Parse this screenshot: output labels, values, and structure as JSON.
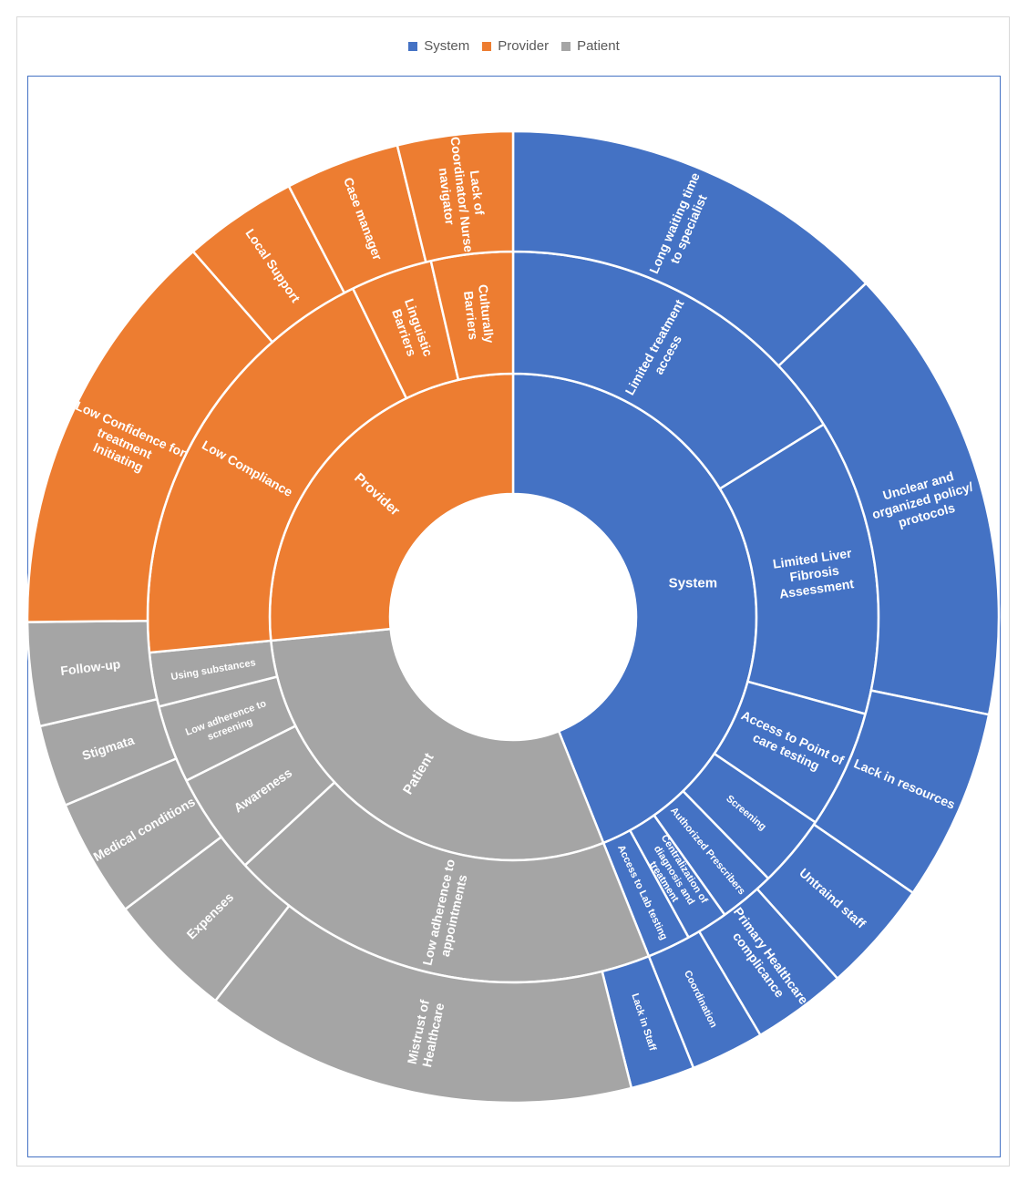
{
  "chart_data": {
    "type": "sunburst",
    "legend": [
      {
        "name": "System",
        "color": "#4472c4"
      },
      {
        "name": "Provider",
        "color": "#ed7d31"
      },
      {
        "name": "Patient",
        "color": "#a5a5a5"
      }
    ],
    "legend_position": "top",
    "nodes": [
      {
        "ring": 1,
        "label": "System",
        "group": "System",
        "start": 0,
        "end": 158.2
      },
      {
        "ring": 1,
        "label": "Patient",
        "group": "Patient",
        "start": 158.2,
        "end": 264.4
      },
      {
        "ring": 1,
        "label": "Provider",
        "group": "Provider",
        "start": 264.4,
        "end": 360
      },
      {
        "ring": 2,
        "label": "Limited treatment access",
        "group": "System",
        "start": 0,
        "end": 58.2
      },
      {
        "ring": 2,
        "label": "Limited Liver Fibrosis Assessment",
        "group": "System",
        "start": 58.2,
        "end": 105.4
      },
      {
        "ring": 2,
        "label": "Access to Point of care testing",
        "group": "System",
        "start": 105.4,
        "end": 124.2
      },
      {
        "ring": 2,
        "label": "Screening",
        "group": "System",
        "start": 124.2,
        "end": 135.7
      },
      {
        "ring": 2,
        "label": "Authorized Prescribers",
        "group": "System",
        "start": 135.7,
        "end": 144.6
      },
      {
        "ring": 2,
        "label": "Centralization of diagnosis and treatment",
        "group": "System",
        "start": 144.6,
        "end": 151.3
      },
      {
        "ring": 2,
        "label": "Access to Lab testing",
        "group": "System",
        "start": 151.3,
        "end": 158.2
      },
      {
        "ring": 2,
        "label": "Low adherence to appointments",
        "group": "Patient",
        "start": 158.2,
        "end": 227.2
      },
      {
        "ring": 2,
        "label": "Awareness",
        "group": "Patient",
        "start": 227.2,
        "end": 243.4
      },
      {
        "ring": 2,
        "label": "Low adherence to screening",
        "group": "Patient",
        "start": 243.4,
        "end": 255.8
      },
      {
        "ring": 2,
        "label": "Using substances",
        "group": "Patient",
        "start": 255.8,
        "end": 264.4
      },
      {
        "ring": 2,
        "label": "Low Compliance",
        "group": "Provider",
        "start": 264.4,
        "end": 334.0
      },
      {
        "ring": 2,
        "label": "Linguistic Barriers",
        "group": "Provider",
        "start": 334.0,
        "end": 347.0
      },
      {
        "ring": 2,
        "label": "Culturally Barriers",
        "group": "Provider",
        "start": 347.0,
        "end": 360
      },
      {
        "ring": 3,
        "label": "Long waiting time to specialist",
        "group": "System",
        "start": 0,
        "end": 46.6
      },
      {
        "ring": 3,
        "label": "Unclear and organized policy/ protocols",
        "group": "System",
        "start": 46.6,
        "end": 101.6
      },
      {
        "ring": 3,
        "label": "Lack in resources",
        "group": "System",
        "start": 101.6,
        "end": 124.6
      },
      {
        "ring": 3,
        "label": "Untraind staff",
        "group": "System",
        "start": 124.6,
        "end": 138.1
      },
      {
        "ring": 3,
        "label": "Primary Healthcare complicance",
        "group": "System",
        "start": 138.1,
        "end": 149.4
      },
      {
        "ring": 3,
        "label": "Coordination",
        "group": "System",
        "start": 149.4,
        "end": 158.2
      },
      {
        "ring": 3,
        "label": "Lack in Staff",
        "group": "System",
        "start": 158.2,
        "end": 165.9
      },
      {
        "ring": 3,
        "label": "Mistrust of Healthcare",
        "group": "Patient",
        "start": 165.9,
        "end": 217.8
      },
      {
        "ring": 3,
        "label": "Expenses",
        "group": "Patient",
        "start": 217.8,
        "end": 233.0
      },
      {
        "ring": 3,
        "label": "Medical conditions",
        "group": "Patient",
        "start": 233.0,
        "end": 247.2
      },
      {
        "ring": 3,
        "label": "Stigmata",
        "group": "Patient",
        "start": 247.2,
        "end": 257.0
      },
      {
        "ring": 3,
        "label": "Follow-up",
        "group": "Patient",
        "start": 257.0,
        "end": 269.4
      },
      {
        "ring": 3,
        "label": "Low Confidence for treatment Initiating",
        "group": "Provider",
        "start": 269.4,
        "end": 318.8
      },
      {
        "ring": 3,
        "label": "Local Support",
        "group": "Provider",
        "start": 318.8,
        "end": 332.5
      },
      {
        "ring": 3,
        "label": "Case manager",
        "group": "Provider",
        "start": 332.5,
        "end": 346.2
      },
      {
        "ring": 3,
        "label": "Lack of Coordinator/ Nurse navigator",
        "group": "Provider",
        "start": 346.2,
        "end": 360
      }
    ]
  }
}
